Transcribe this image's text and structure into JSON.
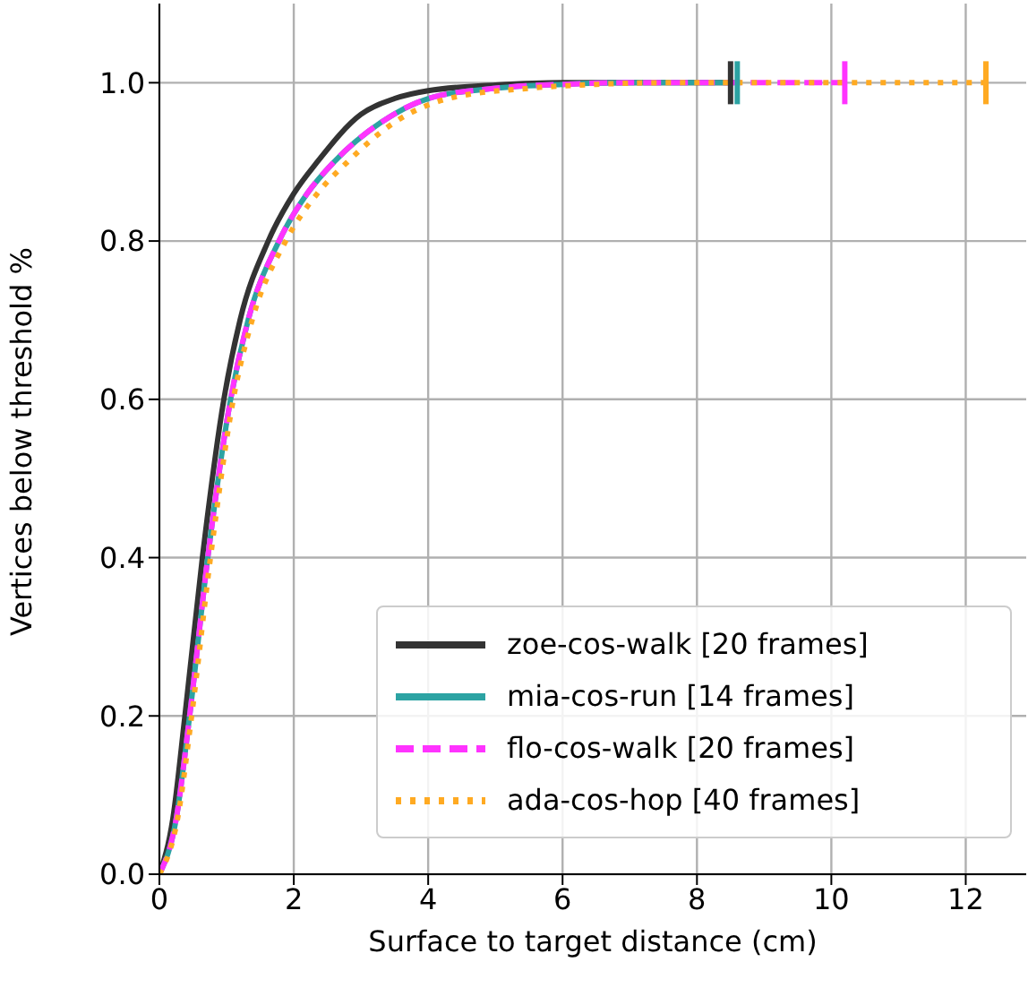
{
  "chart_data": {
    "type": "line",
    "xlabel": "Surface to target distance (cm)",
    "ylabel": "Vertices below threshold %",
    "xlim": [
      0,
      12.9
    ],
    "xticks": [
      0,
      2,
      4,
      6,
      8,
      10,
      12
    ],
    "ylim": [
      0,
      1.1
    ],
    "yticks": [
      {
        "value": 0,
        "label": "0.0"
      },
      {
        "value": 0.2,
        "label": "0.2"
      },
      {
        "value": 0.4,
        "label": "0.4"
      },
      {
        "value": 0.6,
        "label": "0.6"
      },
      {
        "value": 0.8,
        "label": "0.8"
      },
      {
        "value": 1,
        "label": "1.0"
      }
    ],
    "grid": true,
    "legend": "bottom right",
    "series": [
      {
        "name": "zoe-cos-walk [20 frames]",
        "color": "#333333",
        "line_style": "solid",
        "x": [
          0,
          0.2,
          0.38,
          0.64,
          0.96,
          1.2,
          1.62,
          2,
          2.35,
          3,
          3.5,
          4,
          5,
          6,
          8.5
        ],
        "values": [
          0,
          0.07,
          0.2,
          0.4,
          0.6,
          0.7,
          0.8,
          0.86,
          0.9,
          0.96,
          0.98,
          0.99,
          0.997,
          1,
          1
        ]
      },
      {
        "name": "mia-cos-run [14 frames]",
        "color": "#2ca3a3",
        "line_style": "solid",
        "x": [
          0,
          0.25,
          0.45,
          0.72,
          1.06,
          1.32,
          1.78,
          2.2,
          2.6,
          3.3,
          4,
          5,
          6,
          7,
          8.6
        ],
        "values": [
          0,
          0.07,
          0.2,
          0.4,
          0.6,
          0.7,
          0.8,
          0.86,
          0.9,
          0.95,
          0.98,
          0.993,
          0.998,
          1,
          1
        ]
      },
      {
        "name": "flo-cos-walk [20 frames]",
        "color": "#ff33ff",
        "line_style": "dashed",
        "x": [
          0,
          0.25,
          0.45,
          0.72,
          1.06,
          1.32,
          1.78,
          2.2,
          2.6,
          3.3,
          4,
          5,
          6,
          7,
          10.2
        ],
        "values": [
          0,
          0.07,
          0.2,
          0.4,
          0.6,
          0.7,
          0.8,
          0.86,
          0.9,
          0.95,
          0.98,
          0.993,
          0.998,
          1,
          1
        ]
      },
      {
        "name": "ada-cos-hop [40 frames]",
        "color": "#ffaa22",
        "line_style": "dotted",
        "x": [
          0,
          0.27,
          0.48,
          0.76,
          1.1,
          1.38,
          1.88,
          2.35,
          2.8,
          3.5,
          4.3,
          5.5,
          6.5,
          7.5,
          12.3
        ],
        "values": [
          0,
          0.07,
          0.2,
          0.4,
          0.6,
          0.7,
          0.8,
          0.86,
          0.9,
          0.95,
          0.98,
          0.993,
          0.998,
          1,
          1
        ]
      }
    ]
  }
}
